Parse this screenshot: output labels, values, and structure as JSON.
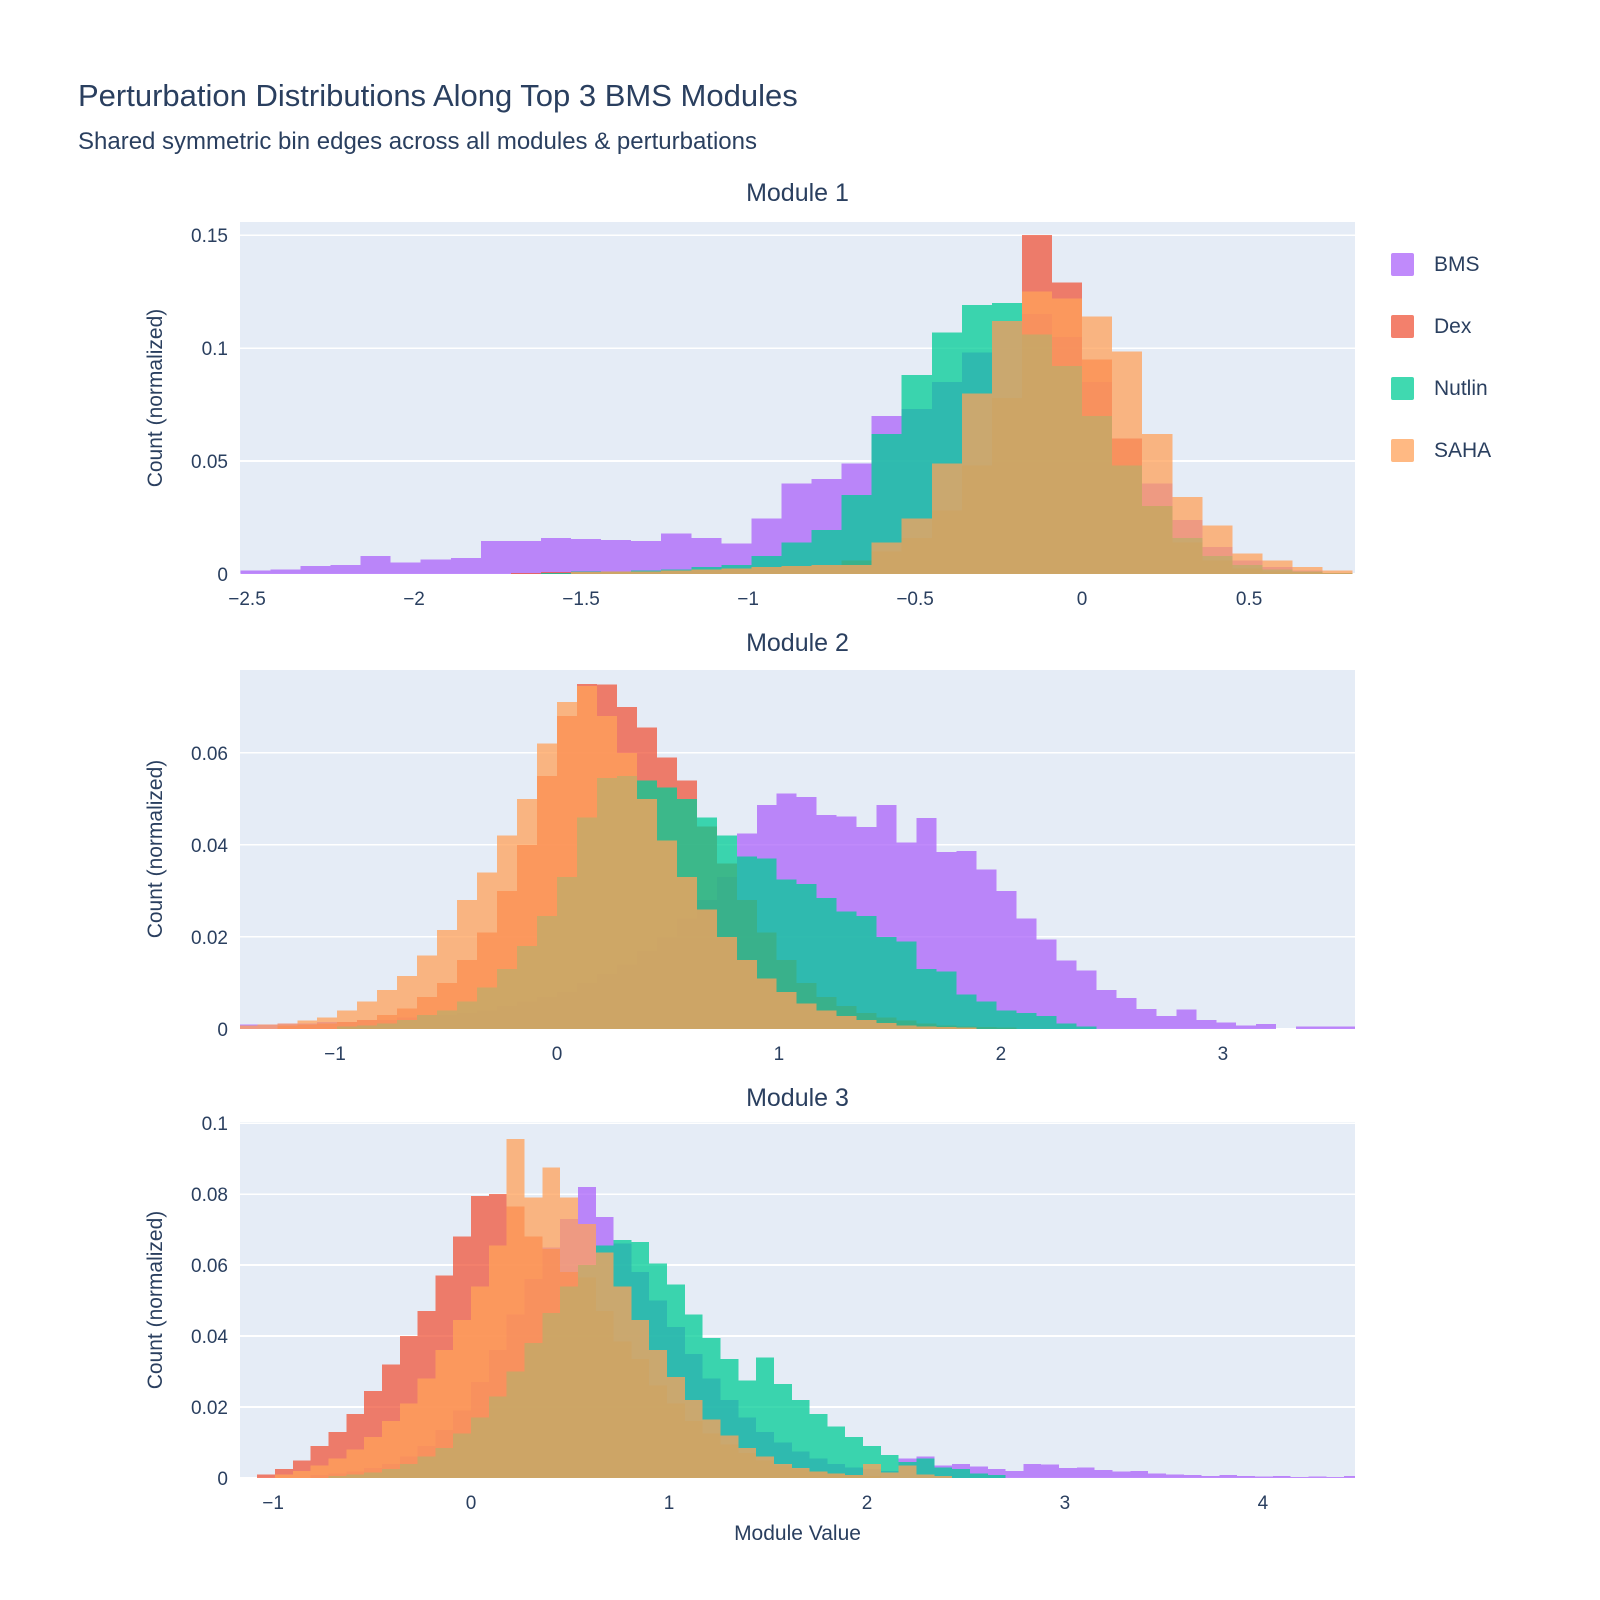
{
  "title": "Perturbation Distributions Along Top 3 BMS Modules",
  "subtitle": "Shared symmetric bin edges across all modules & perturbations",
  "axes": {
    "x_title": "Module Value",
    "y_title": "Count (normalized)"
  },
  "legend": {
    "items": [
      {
        "label": "BMS",
        "color": "#AB63FA"
      },
      {
        "label": "Dex",
        "color": "#EF553B"
      },
      {
        "label": "Nutlin",
        "color": "#00CC96"
      },
      {
        "label": "SAHA",
        "color": "#FFA15A"
      }
    ]
  },
  "style": {
    "plot_bgcolor": "#E5ECF6",
    "grid_color": "#FFFFFF",
    "text_color": "#2a3f5f",
    "bar_opacity": 0.75
  },
  "chart_data": {
    "type": "bar",
    "mode": "overlaid-histograms",
    "title": "Perturbation Distributions Along Top 3 BMS Modules",
    "subtitle": "Shared symmetric bin edges across all modules & perturbations",
    "xlabel": "Module Value",
    "ylabel": "Count (normalized)",
    "legend_position": "right-top",
    "grid": "horizontal-only",
    "modules": [
      {
        "title": "Module 1",
        "bin_start": -2.52,
        "bin_width": 0.09,
        "x_range": [
          -2.521,
          0.817
        ],
        "y_range": [
          0,
          0.1558
        ],
        "x_ticks": [
          -2.5,
          -2,
          -1.5,
          -1,
          -0.5,
          0,
          0.5
        ],
        "y_ticks": [
          0,
          0.05,
          0.1,
          0.15
        ],
        "series": [
          {
            "name": "BMS",
            "heights": [
              0.0015,
              0.002,
              0.0035,
              0.004,
              0.008,
              0.005,
              0.0065,
              0.007,
              0.0145,
              0.0145,
              0.016,
              0.0155,
              0.015,
              0.0145,
              0.018,
              0.016,
              0.0135,
              0.0245,
              0.04,
              0.042,
              0.049,
              0.07,
              0.073,
              0.085,
              0.098,
              0.112,
              0.115,
              0.105,
              0.085,
              0.06,
              0.04,
              0.024,
              0.012,
              0.006,
              0.003,
              0.0015,
              0.0005
            ]
          },
          {
            "name": "Dex",
            "heights": [
              0,
              0,
              0,
              0,
              0,
              0,
              0,
              0,
              0,
              0.0005,
              0.0008,
              0.001,
              0.001,
              0.0012,
              0.0015,
              0.002,
              0.0025,
              0.003,
              0.0035,
              0.004,
              0.006,
              0.01,
              0.016,
              0.028,
              0.048,
              0.078,
              0.15,
              0.129,
              0.095,
              0.06,
              0.03,
              0.014,
              0.006,
              0.0025,
              0.001,
              0.0008,
              0.0005
            ]
          },
          {
            "name": "Nutlin",
            "heights": [
              0,
              0,
              0,
              0,
              0,
              0,
              0,
              0,
              0,
              0,
              0.0005,
              0.001,
              0.001,
              0.0015,
              0.002,
              0.003,
              0.004,
              0.008,
              0.014,
              0.0195,
              0.035,
              0.062,
              0.088,
              0.107,
              0.119,
              0.12,
              0.106,
              0.092,
              0.07,
              0.048,
              0.03,
              0.016,
              0.008,
              0.004,
              0.002,
              0.001,
              0.0005
            ]
          },
          {
            "name": "SAHA",
            "heights": [
              0,
              0,
              0,
              0,
              0,
              0,
              0,
              0,
              0,
              0,
              0,
              0.0008,
              0.001,
              0.0012,
              0.0015,
              0.002,
              0.0025,
              0.003,
              0.0035,
              0.004,
              0.004,
              0.014,
              0.0245,
              0.049,
              0.08,
              0.112,
              0.125,
              0.122,
              0.114,
              0.0985,
              0.062,
              0.034,
              0.0215,
              0.009,
              0.006,
              0.003,
              0.0015
            ]
          }
        ]
      },
      {
        "title": "Module 2",
        "bin_start": -1.44,
        "bin_width": 0.09,
        "x_range": [
          -1.428,
          3.595
        ],
        "y_range": [
          0,
          0.078
        ],
        "x_ticks": [
          -1,
          0,
          1,
          2,
          3
        ],
        "y_ticks": [
          0,
          0.02,
          0.04,
          0.06
        ],
        "series": [
          {
            "name": "BMS",
            "heights": [
              0.001,
              0.001,
              0.0012,
              0.0012,
              0.0015,
              0.0015,
              0.002,
              0.002,
              0.0025,
              0.003,
              0.003,
              0.0035,
              0.004,
              0.005,
              0.006,
              0.007,
              0.008,
              0.01,
              0.012,
              0.014,
              0.017,
              0.02,
              0.024,
              0.028,
              0.033,
              0.0425,
              0.0487,
              0.0512,
              0.0504,
              0.0465,
              0.0462,
              0.0439,
              0.0487,
              0.0405,
              0.0458,
              0.0385,
              0.0387,
              0.0347,
              0.03,
              0.024,
              0.0195,
              0.0149,
              0.0127,
              0.0085,
              0.0067,
              0.0043,
              0.0028,
              0.0042,
              0.002,
              0.0014,
              0.0008,
              0.0011,
              0,
              0.0005,
              0.0005,
              0.0005
            ]
          },
          {
            "name": "Dex",
            "heights": [
              0,
              0,
              0.0008,
              0.001,
              0.0012,
              0.0015,
              0.002,
              0.003,
              0.0045,
              0.007,
              0.01,
              0.015,
              0.021,
              0.03,
              0.04,
              0.055,
              0.068,
              0.075,
              0.0748,
              0.07,
              0.0655,
              0.059,
              0.054,
              0.044,
              0.036,
              0.028,
              0.021,
              0.015,
              0.01,
              0.007,
              0.005,
              0.0035,
              0.0025,
              0.0018,
              0.0012,
              0.0008,
              0.0005,
              0.0004,
              0.0003,
              0,
              0,
              0,
              0,
              0,
              0,
              0,
              0,
              0,
              0,
              0,
              0,
              0,
              0,
              0,
              0,
              0
            ]
          },
          {
            "name": "Nutlin",
            "heights": [
              0,
              0,
              0,
              0,
              0,
              0.0005,
              0.0008,
              0.0012,
              0.002,
              0.003,
              0.004,
              0.006,
              0.009,
              0.013,
              0.018,
              0.0245,
              0.033,
              0.046,
              0.0545,
              0.055,
              0.054,
              0.0525,
              0.05,
              0.046,
              0.042,
              0.0375,
              0.037,
              0.0325,
              0.0315,
              0.0285,
              0.0255,
              0.0245,
              0.02,
              0.019,
              0.013,
              0.0125,
              0.0075,
              0.006,
              0.004,
              0.0035,
              0.0028,
              0.0012,
              0.0005,
              0,
              0,
              0,
              0,
              0,
              0,
              0,
              0,
              0,
              0,
              0,
              0,
              0
            ]
          },
          {
            "name": "SAHA",
            "heights": [
              0.0008,
              0.001,
              0.0012,
              0.0018,
              0.0025,
              0.004,
              0.006,
              0.0085,
              0.0115,
              0.016,
              0.0215,
              0.028,
              0.034,
              0.042,
              0.05,
              0.062,
              0.071,
              0.0745,
              0.068,
              0.06,
              0.05,
              0.041,
              0.033,
              0.026,
              0.02,
              0.015,
              0.011,
              0.008,
              0.0055,
              0.004,
              0.0028,
              0.002,
              0.0013,
              0.0008,
              0.0005,
              0.0004,
              0.0003,
              0,
              0,
              0,
              0,
              0,
              0,
              0,
              0,
              0,
              0,
              0,
              0,
              0,
              0,
              0,
              0,
              0,
              0,
              0
            ]
          }
        ]
      },
      {
        "title": "Module 3",
        "bin_start": -1.08,
        "bin_width": 0.09,
        "x_range": [
          -1.167,
          4.465
        ],
        "y_range": [
          0,
          0.1003
        ],
        "x_ticks": [
          -1,
          0,
          1,
          2,
          3,
          4
        ],
        "y_ticks": [
          0,
          0.02,
          0.04,
          0.06,
          0.08,
          0.1
        ],
        "series": [
          {
            "name": "BMS",
            "heights": [
              0,
              0,
              0,
              0.0008,
              0.0012,
              0.0018,
              0.0028,
              0.004,
              0.006,
              0.009,
              0.0135,
              0.019,
              0.027,
              0.036,
              0.046,
              0.056,
              0.065,
              0.073,
              0.082,
              0.0735,
              0.066,
              0.058,
              0.05,
              0.0425,
              0.035,
              0.028,
              0.022,
              0.017,
              0.013,
              0.01,
              0.0075,
              0.0055,
              0.004,
              0.003,
              0.0025,
              0.002,
              0.0055,
              0.006,
              0.0035,
              0.004,
              0.0032,
              0.0025,
              0.002,
              0.004,
              0.0038,
              0.0028,
              0.003,
              0.0022,
              0.0018,
              0.002,
              0.0012,
              0.001,
              0.0008,
              0.0006,
              0.0008,
              0.0005,
              0.0004,
              0.0006,
              0.0003,
              0.0004,
              0.0003,
              0.0005
            ]
          },
          {
            "name": "Dex",
            "heights": [
              0.001,
              0.0025,
              0.005,
              0.009,
              0.013,
              0.018,
              0.0245,
              0.032,
              0.04,
              0.047,
              0.057,
              0.068,
              0.0795,
              0.08,
              0.0765,
              0.068,
              0.0645,
              0.058,
              0.0565,
              0.047,
              0.0385,
              0.0335,
              0.026,
              0.021,
              0.016,
              0.0125,
              0.0095,
              0.007,
              0.005,
              0.0035,
              0.0025,
              0.0018,
              0.0012,
              0.0008,
              0.0005,
              0,
              0,
              0,
              0,
              0,
              0,
              0,
              0,
              0,
              0,
              0,
              0,
              0,
              0,
              0,
              0,
              0,
              0,
              0,
              0,
              0,
              0,
              0,
              0,
              0,
              0,
              0
            ]
          },
          {
            "name": "Nutlin",
            "heights": [
              0,
              0,
              0,
              0,
              0.0005,
              0.001,
              0.0015,
              0.0025,
              0.004,
              0.006,
              0.0085,
              0.0125,
              0.017,
              0.023,
              0.03,
              0.038,
              0.0465,
              0.054,
              0.06,
              0.0655,
              0.067,
              0.0665,
              0.0605,
              0.0545,
              0.046,
              0.0395,
              0.0335,
              0.0275,
              0.034,
              0.0265,
              0.022,
              0.018,
              0.0145,
              0.0115,
              0.009,
              0.0065,
              0.0045,
              0.0055,
              0.003,
              0.0025,
              0.0012,
              0.0008,
              0,
              0,
              0,
              0,
              0,
              0,
              0,
              0,
              0,
              0,
              0,
              0,
              0,
              0,
              0,
              0,
              0,
              0,
              0,
              0
            ]
          },
          {
            "name": "SAHA",
            "heights": [
              0,
              0.001,
              0.002,
              0.0035,
              0.0055,
              0.008,
              0.0115,
              0.016,
              0.021,
              0.028,
              0.036,
              0.0445,
              0.054,
              0.0655,
              0.0955,
              0.079,
              0.0875,
              0.079,
              0.0715,
              0.0635,
              0.054,
              0.0445,
              0.036,
              0.0285,
              0.022,
              0.0165,
              0.012,
              0.0085,
              0.006,
              0.004,
              0.0028,
              0.0018,
              0.0012,
              0.0008,
              0.004,
              0.0015,
              0.0035,
              0.001,
              0.0005,
              0,
              0,
              0,
              0,
              0,
              0,
              0,
              0,
              0,
              0,
              0,
              0,
              0,
              0,
              0,
              0,
              0,
              0,
              0,
              0,
              0,
              0,
              0
            ]
          }
        ]
      }
    ]
  }
}
